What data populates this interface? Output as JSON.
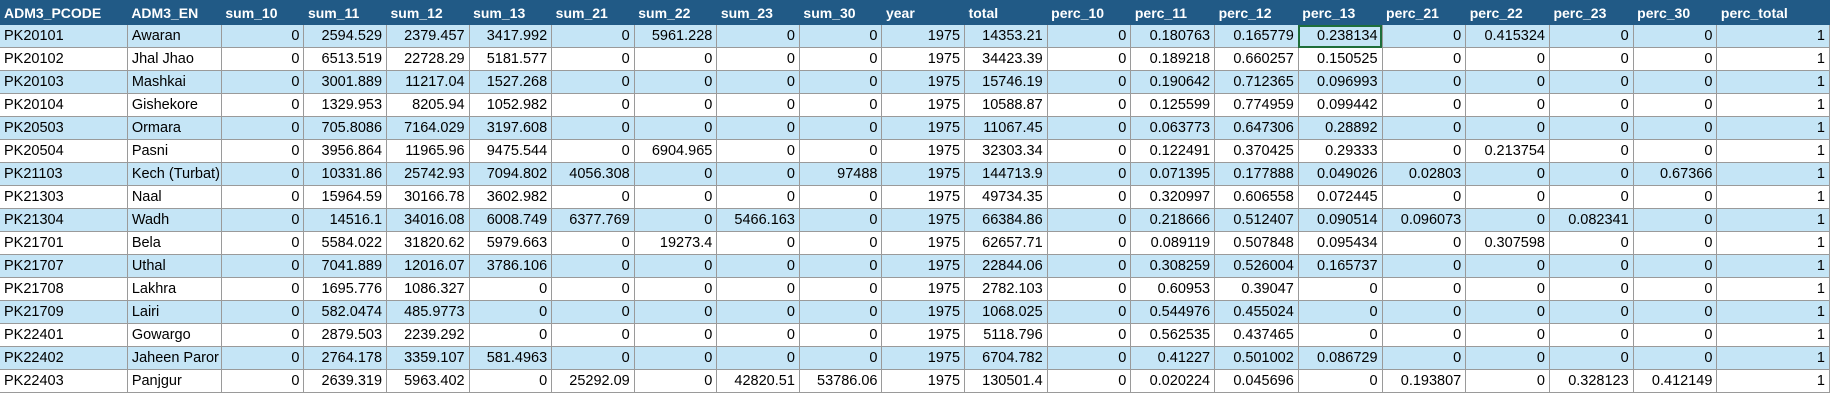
{
  "sheet": {
    "columns": [
      "ADM3_PCODE",
      "ADM3_EN",
      "sum_10",
      "sum_11",
      "sum_12",
      "sum_13",
      "sum_21",
      "sum_22",
      "sum_23",
      "sum_30",
      "year",
      "total",
      "perc_10",
      "perc_11",
      "perc_12",
      "perc_13",
      "perc_21",
      "perc_22",
      "perc_23",
      "perc_30",
      "perc_total"
    ],
    "selected_cell": {
      "row": 0,
      "col": 15
    },
    "rows": [
      [
        "PK20101",
        "Awaran",
        "0",
        "2594.529",
        "2379.457",
        "3417.992",
        "0",
        "5961.228",
        "0",
        "0",
        "1975",
        "14353.21",
        "0",
        "0.180763",
        "0.165779",
        "0.238134",
        "0",
        "0.415324",
        "0",
        "0",
        "1"
      ],
      [
        "PK20102",
        "Jhal Jhao",
        "0",
        "6513.519",
        "22728.29",
        "5181.577",
        "0",
        "0",
        "0",
        "0",
        "1975",
        "34423.39",
        "0",
        "0.189218",
        "0.660257",
        "0.150525",
        "0",
        "0",
        "0",
        "0",
        "1"
      ],
      [
        "PK20103",
        "Mashkai",
        "0",
        "3001.889",
        "11217.04",
        "1527.268",
        "0",
        "0",
        "0",
        "0",
        "1975",
        "15746.19",
        "0",
        "0.190642",
        "0.712365",
        "0.096993",
        "0",
        "0",
        "0",
        "0",
        "1"
      ],
      [
        "PK20104",
        "Gishekore",
        "0",
        "1329.953",
        "8205.94",
        "1052.982",
        "0",
        "0",
        "0",
        "0",
        "1975",
        "10588.87",
        "0",
        "0.125599",
        "0.774959",
        "0.099442",
        "0",
        "0",
        "0",
        "0",
        "1"
      ],
      [
        "PK20503",
        "Ormara",
        "0",
        "705.8086",
        "7164.029",
        "3197.608",
        "0",
        "0",
        "0",
        "0",
        "1975",
        "11067.45",
        "0",
        "0.063773",
        "0.647306",
        "0.28892",
        "0",
        "0",
        "0",
        "0",
        "1"
      ],
      [
        "PK20504",
        "Pasni",
        "0",
        "3956.864",
        "11965.96",
        "9475.544",
        "0",
        "6904.965",
        "0",
        "0",
        "1975",
        "32303.34",
        "0",
        "0.122491",
        "0.370425",
        "0.29333",
        "0",
        "0.213754",
        "0",
        "0",
        "1"
      ],
      [
        "PK21103",
        "Kech (Turbat)",
        "0",
        "10331.86",
        "25742.93",
        "7094.802",
        "4056.308",
        "0",
        "0",
        "97488",
        "1975",
        "144713.9",
        "0",
        "0.071395",
        "0.177888",
        "0.049026",
        "0.02803",
        "0",
        "0",
        "0.67366",
        "1"
      ],
      [
        "PK21303",
        "Naal",
        "0",
        "15964.59",
        "30166.78",
        "3602.982",
        "0",
        "0",
        "0",
        "0",
        "1975",
        "49734.35",
        "0",
        "0.320997",
        "0.606558",
        "0.072445",
        "0",
        "0",
        "0",
        "0",
        "1"
      ],
      [
        "PK21304",
        "Wadh",
        "0",
        "14516.1",
        "34016.08",
        "6008.749",
        "6377.769",
        "0",
        "5466.163",
        "0",
        "1975",
        "66384.86",
        "0",
        "0.218666",
        "0.512407",
        "0.090514",
        "0.096073",
        "0",
        "0.082341",
        "0",
        "1"
      ],
      [
        "PK21701",
        "Bela",
        "0",
        "5584.022",
        "31820.62",
        "5979.663",
        "0",
        "19273.4",
        "0",
        "0",
        "1975",
        "62657.71",
        "0",
        "0.089119",
        "0.507848",
        "0.095434",
        "0",
        "0.307598",
        "0",
        "0",
        "1"
      ],
      [
        "PK21707",
        "Uthal",
        "0",
        "7041.889",
        "12016.07",
        "3786.106",
        "0",
        "0",
        "0",
        "0",
        "1975",
        "22844.06",
        "0",
        "0.308259",
        "0.526004",
        "0.165737",
        "0",
        "0",
        "0",
        "0",
        "1"
      ],
      [
        "PK21708",
        "Lakhra",
        "0",
        "1695.776",
        "1086.327",
        "0",
        "0",
        "0",
        "0",
        "0",
        "1975",
        "2782.103",
        "0",
        "0.60953",
        "0.39047",
        "0",
        "0",
        "0",
        "0",
        "0",
        "1"
      ],
      [
        "PK21709",
        "Lairi",
        "0",
        "582.0474",
        "485.9773",
        "0",
        "0",
        "0",
        "0",
        "0",
        "1975",
        "1068.025",
        "0",
        "0.544976",
        "0.455024",
        "0",
        "0",
        "0",
        "0",
        "0",
        "1"
      ],
      [
        "PK22401",
        "Gowargo",
        "0",
        "2879.503",
        "2239.292",
        "0",
        "0",
        "0",
        "0",
        "0",
        "1975",
        "5118.796",
        "0",
        "0.562535",
        "0.437465",
        "0",
        "0",
        "0",
        "0",
        "0",
        "1"
      ],
      [
        "PK22402",
        "Jaheen Paror",
        "0",
        "2764.178",
        "3359.107",
        "581.4963",
        "0",
        "0",
        "0",
        "0",
        "1975",
        "6704.782",
        "0",
        "0.41227",
        "0.501002",
        "0.086729",
        "0",
        "0",
        "0",
        "0",
        "1"
      ],
      [
        "PK22403",
        "Panjgur",
        "0",
        "2639.319",
        "5963.402",
        "0",
        "25292.09",
        "0",
        "42820.51",
        "53786.06",
        "1975",
        "130501.4",
        "0",
        "0.020224",
        "0.045696",
        "0",
        "0.193807",
        "0",
        "0.328123",
        "0.412149",
        "1"
      ]
    ]
  }
}
